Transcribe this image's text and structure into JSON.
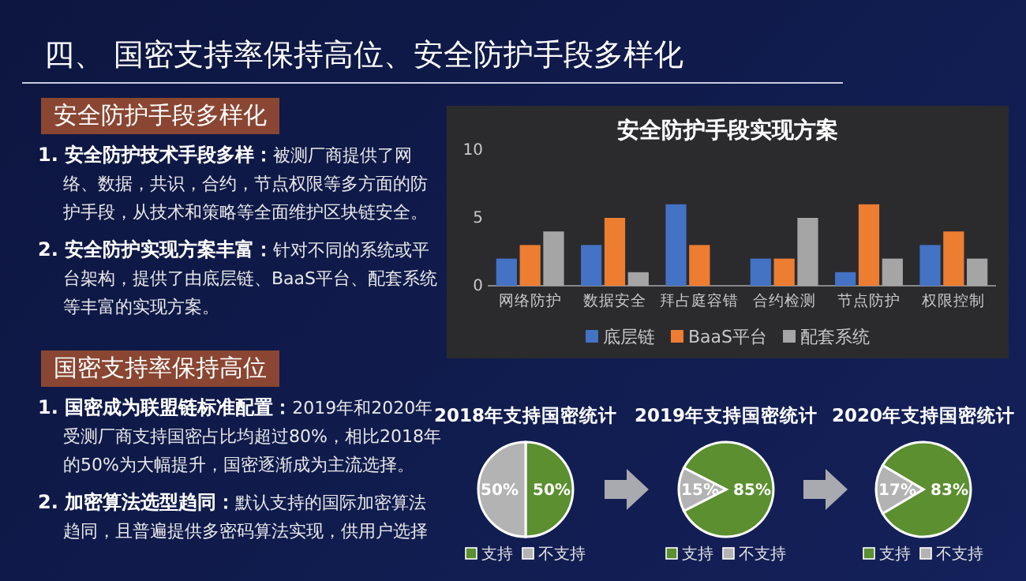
{
  "chart_data": [
    {
      "type": "other",
      "title": "四、 国密支持率保持高位、安全防护手段多样化"
    },
    {
      "type": "other",
      "title": "安全防护手段多样化",
      "annotations": [
        "1. 安全防护技术手段多样：被测厂商提供了网络、数据，共识，合约，节点权限等多方面的防护手段，从技术和策略等全面维护区块链安全。",
        "2. 安全防护实现方案丰富：针对不同的系统或平台架构，提供了由底层链、BaaS平台、配套系统等丰富的实现方案。"
      ]
    },
    {
      "type": "other",
      "title": "国密支持率保持高位",
      "annotations": [
        "1. 国密成为联盟链标准配置：2019年和2020年受测厂商支持国密占比均超过80%，相比2018年的50%为大幅提升，国密逐渐成为主流选择。",
        "2. 加密算法选型趋同：默认支持的国际加密算法趋同，且普遍提供多密码算法实现，供用户选择"
      ]
    },
    {
      "type": "bar",
      "title": "安全防护手段实现方案",
      "categories": [
        "网络防护",
        "数据安全",
        "拜占庭容错",
        "合约检测",
        "节点防护",
        "权限控制"
      ],
      "series": [
        {
          "name": "底层链",
          "color": "#4472c4",
          "values": [
            2,
            3,
            6,
            2,
            1,
            3
          ]
        },
        {
          "name": "BaaS平台",
          "color": "#ed7d31",
          "values": [
            3,
            5,
            3,
            2,
            6,
            4
          ]
        },
        {
          "name": "配套系统",
          "color": "#a5a5a5",
          "values": [
            4,
            1,
            0,
            5,
            2,
            2
          ]
        }
      ],
      "ylim": [
        0,
        10
      ],
      "yticks": [
        0,
        5,
        10
      ],
      "legend": "bottom"
    },
    {
      "type": "pie",
      "title": "2018年支持国密统计",
      "categories": [
        "支持",
        "不支持"
      ],
      "values": [
        50,
        50
      ],
      "colors": [
        "#5b8f2f",
        "#b3b3b3"
      ],
      "value_labels": [
        "50%",
        "50%"
      ],
      "legend": "bottom"
    },
    {
      "type": "pie",
      "title": "2019年支持国密统计",
      "categories": [
        "支持",
        "不支持"
      ],
      "values": [
        85,
        15
      ],
      "colors": [
        "#5b8f2f",
        "#b3b3b3"
      ],
      "value_labels": [
        "85%",
        "15%"
      ],
      "legend": "bottom"
    },
    {
      "type": "pie",
      "title": "2020年支持国密统计",
      "categories": [
        "支持",
        "不支持"
      ],
      "values": [
        83,
        17
      ],
      "colors": [
        "#5b8f2f",
        "#b3b3b3"
      ],
      "value_labels": [
        "83%",
        "17%"
      ],
      "legend": "bottom"
    }
  ]
}
